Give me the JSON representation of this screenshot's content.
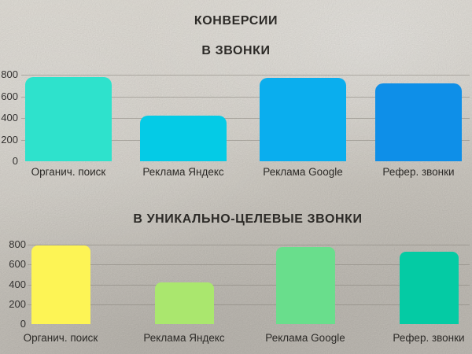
{
  "page": {
    "main_title": "КОНВЕРСИИ",
    "background_color": "#d8d4cc",
    "text_color": "#2c2a27",
    "gridline_color": "#827b74"
  },
  "chart_data": [
    {
      "type": "bar",
      "title": "В ЗВОНКИ",
      "categories": [
        "Органич. поиск",
        "Реклама Яндекс",
        "Реклама Google",
        "Рефер. звонки"
      ],
      "values": [
        780,
        420,
        770,
        720
      ],
      "bar_colors": [
        "#2ee2cc",
        "#04cbe6",
        "#0aaeee",
        "#0e8fe8"
      ],
      "xlabel": "",
      "ylabel": "",
      "ylim": [
        0,
        800
      ],
      "yticks": [
        0,
        200,
        400,
        600,
        800
      ],
      "grid": true,
      "legend": false
    },
    {
      "type": "bar",
      "title": "В УНИКАЛЬНО-ЦЕЛЕВЫЕ ЗВОНКИ",
      "categories": [
        "Органич. поиск",
        "Реклама Яндекс",
        "Реклама Google",
        "Рефер. звонки"
      ],
      "values": [
        790,
        420,
        780,
        730
      ],
      "bar_colors": [
        "#fdf455",
        "#aae76e",
        "#69de8c",
        "#04cba4"
      ],
      "xlabel": "",
      "ylabel": "",
      "ylim": [
        0,
        800
      ],
      "yticks": [
        0,
        200,
        400,
        600,
        800
      ],
      "grid": true,
      "legend": false
    }
  ]
}
